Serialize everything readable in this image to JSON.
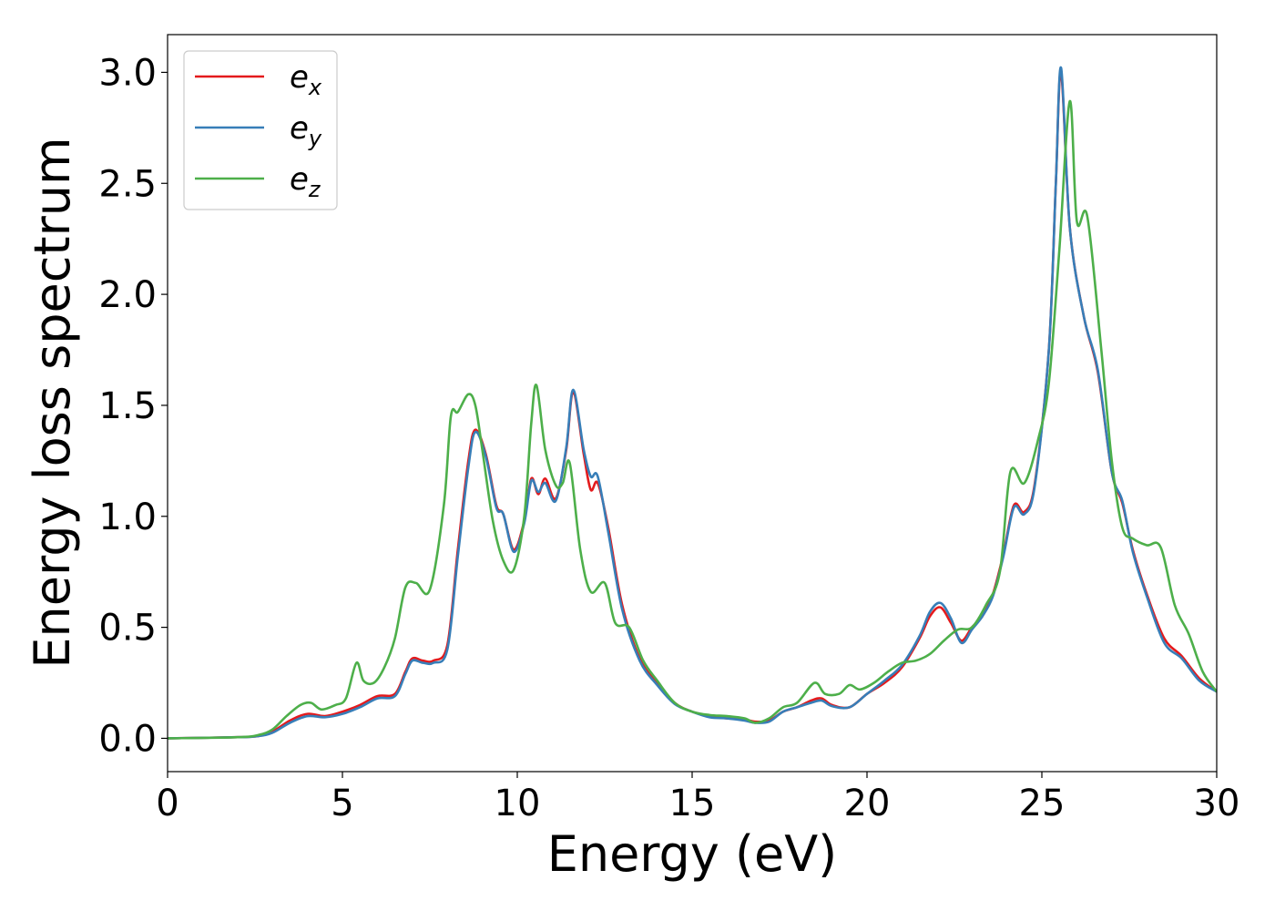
{
  "chart_data": {
    "type": "line",
    "title": "",
    "xlabel": "Energy (eV)",
    "ylabel": "Energy loss spectrum",
    "xlim": [
      0,
      30
    ],
    "ylim": [
      -0.15,
      3.17
    ],
    "xticks": [
      0,
      5,
      10,
      15,
      20,
      25,
      30
    ],
    "xtick_labels": [
      "0",
      "5",
      "10",
      "15",
      "20",
      "25",
      "30"
    ],
    "yticks": [
      0.0,
      0.5,
      1.0,
      1.5,
      2.0,
      2.5,
      3.0
    ],
    "ytick_labels": [
      "0.0",
      "0.5",
      "1.0",
      "1.5",
      "2.0",
      "2.5",
      "3.0"
    ],
    "grid": false,
    "legend_position": "top-left",
    "series": [
      {
        "name": "e",
        "subscript": "x",
        "color": "#e41a1c",
        "x": [
          0,
          2,
          2.6,
          3,
          3.5,
          4,
          4.5,
          5,
          5.5,
          6,
          6.5,
          6.8,
          7,
          7.3,
          7.6,
          8,
          8.3,
          8.6,
          8.8,
          9.1,
          9.4,
          9.6,
          9.9,
          10.2,
          10.4,
          10.6,
          10.8,
          11.1,
          11.4,
          11.6,
          11.9,
          12.1,
          12.3,
          12.6,
          13,
          13.5,
          14,
          14.5,
          15,
          15.5,
          16,
          16.5,
          16.8,
          17.2,
          17.6,
          18,
          18.4,
          18.7,
          19,
          19.5,
          20,
          20.5,
          21,
          21.5,
          21.8,
          22.1,
          22.4,
          22.7,
          23,
          23.3,
          23.6,
          23.9,
          24.2,
          24.5,
          24.8,
          25.2,
          25.4,
          25.55,
          25.8,
          26.2,
          26.6,
          27,
          27.3,
          27.6,
          28,
          28.5,
          29,
          29.5,
          30
        ],
        "y": [
          0.0,
          0.005,
          0.01,
          0.03,
          0.08,
          0.11,
          0.1,
          0.12,
          0.15,
          0.19,
          0.2,
          0.3,
          0.36,
          0.35,
          0.35,
          0.42,
          0.85,
          1.25,
          1.39,
          1.28,
          1.05,
          1.01,
          0.85,
          0.98,
          1.17,
          1.1,
          1.17,
          1.08,
          1.3,
          1.56,
          1.28,
          1.12,
          1.15,
          0.95,
          0.6,
          0.36,
          0.25,
          0.16,
          0.12,
          0.1,
          0.09,
          0.085,
          0.075,
          0.08,
          0.12,
          0.14,
          0.17,
          0.18,
          0.15,
          0.14,
          0.2,
          0.25,
          0.32,
          0.45,
          0.55,
          0.59,
          0.52,
          0.44,
          0.5,
          0.55,
          0.65,
          0.83,
          1.05,
          1.02,
          1.15,
          1.75,
          2.5,
          3.0,
          2.3,
          1.9,
          1.65,
          1.2,
          1.06,
          0.85,
          0.65,
          0.45,
          0.37,
          0.27,
          0.21
        ]
      },
      {
        "name": "e",
        "subscript": "y",
        "color": "#377eb8",
        "x": [
          0,
          2,
          2.6,
          3,
          3.5,
          4,
          4.5,
          5,
          5.5,
          6,
          6.5,
          6.8,
          7,
          7.3,
          7.6,
          8,
          8.3,
          8.6,
          8.8,
          9.1,
          9.4,
          9.6,
          9.9,
          10.2,
          10.4,
          10.6,
          10.8,
          11.1,
          11.4,
          11.6,
          11.9,
          12.1,
          12.3,
          12.6,
          13,
          13.5,
          14,
          14.5,
          15,
          15.5,
          16,
          16.5,
          16.8,
          17.2,
          17.6,
          18,
          18.4,
          18.7,
          19,
          19.5,
          20,
          20.5,
          21,
          21.5,
          21.8,
          22.1,
          22.4,
          22.7,
          23,
          23.3,
          23.6,
          23.9,
          24.2,
          24.5,
          24.8,
          25.2,
          25.4,
          25.55,
          25.8,
          26.2,
          26.6,
          27,
          27.3,
          27.6,
          28,
          28.5,
          29,
          29.5,
          30
        ],
        "y": [
          0.0,
          0.005,
          0.01,
          0.025,
          0.07,
          0.1,
          0.095,
          0.11,
          0.14,
          0.18,
          0.19,
          0.29,
          0.35,
          0.34,
          0.34,
          0.4,
          0.82,
          1.22,
          1.38,
          1.27,
          1.04,
          1.01,
          0.84,
          0.97,
          1.16,
          1.11,
          1.15,
          1.07,
          1.31,
          1.57,
          1.3,
          1.18,
          1.18,
          0.93,
          0.58,
          0.35,
          0.24,
          0.155,
          0.12,
          0.095,
          0.09,
          0.08,
          0.07,
          0.075,
          0.12,
          0.14,
          0.16,
          0.17,
          0.145,
          0.14,
          0.2,
          0.26,
          0.33,
          0.46,
          0.57,
          0.61,
          0.54,
          0.43,
          0.49,
          0.55,
          0.64,
          0.82,
          1.04,
          1.01,
          1.14,
          1.75,
          2.5,
          3.02,
          2.3,
          1.9,
          1.66,
          1.2,
          1.07,
          0.84,
          0.64,
          0.43,
          0.36,
          0.26,
          0.21
        ]
      },
      {
        "name": "e",
        "subscript": "z",
        "color": "#4daf4a",
        "x": [
          0,
          2,
          2.6,
          3,
          3.4,
          3.8,
          4.1,
          4.4,
          4.8,
          5.1,
          5.4,
          5.6,
          5.9,
          6.2,
          6.5,
          6.8,
          7.1,
          7.5,
          7.9,
          8.1,
          8.3,
          8.6,
          8.8,
          9.0,
          9.3,
          9.6,
          9.9,
          10.2,
          10.4,
          10.55,
          10.8,
          11.1,
          11.3,
          11.5,
          11.8,
          12.1,
          12.5,
          12.8,
          13.2,
          13.6,
          14,
          14.5,
          15,
          15.5,
          16,
          16.5,
          16.8,
          17.2,
          17.6,
          18,
          18.5,
          18.8,
          19.2,
          19.5,
          19.8,
          20.2,
          20.6,
          21,
          21.4,
          21.8,
          22.2,
          22.6,
          23,
          23.4,
          23.8,
          24.1,
          24.5,
          24.9,
          25.2,
          25.5,
          25.8,
          26.0,
          26.3,
          26.7,
          27.0,
          27.3,
          27.6,
          28.0,
          28.4,
          28.8,
          29.2,
          29.6,
          30
        ],
        "y": [
          0.0,
          0.005,
          0.015,
          0.04,
          0.1,
          0.15,
          0.16,
          0.13,
          0.15,
          0.18,
          0.34,
          0.26,
          0.25,
          0.32,
          0.45,
          0.68,
          0.7,
          0.67,
          1.05,
          1.45,
          1.47,
          1.55,
          1.5,
          1.3,
          0.98,
          0.8,
          0.76,
          1.0,
          1.42,
          1.59,
          1.3,
          1.14,
          1.15,
          1.24,
          0.85,
          0.66,
          0.7,
          0.52,
          0.5,
          0.35,
          0.26,
          0.16,
          0.12,
          0.105,
          0.1,
          0.09,
          0.07,
          0.09,
          0.14,
          0.16,
          0.25,
          0.2,
          0.2,
          0.24,
          0.22,
          0.25,
          0.3,
          0.34,
          0.35,
          0.38,
          0.44,
          0.49,
          0.5,
          0.6,
          0.75,
          1.2,
          1.15,
          1.35,
          1.6,
          2.2,
          2.87,
          2.33,
          2.35,
          1.75,
          1.25,
          0.95,
          0.9,
          0.87,
          0.86,
          0.6,
          0.47,
          0.3,
          0.21
        ]
      }
    ]
  }
}
